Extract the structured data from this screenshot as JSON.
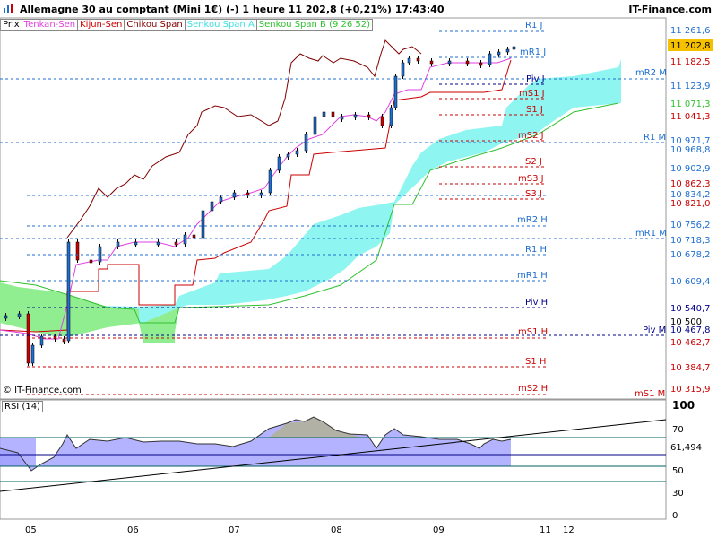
{
  "header": {
    "title": "Allemagne 30 au comptant (Mini 1€) (-)   1 heure   11 202,8 (+0,21%)   17:43:40",
    "brand": "IT-Finance.com"
  },
  "legend": [
    {
      "label": "Prix",
      "color": "#000000"
    },
    {
      "label": "Tenkan-Sen",
      "color": "#e040e0"
    },
    {
      "label": "Kijun-Sen",
      "color": "#cc0000"
    },
    {
      "label": "Chikou Span",
      "color": "#800000"
    },
    {
      "label": "Senkou Span A",
      "color": "#40e0e0"
    },
    {
      "label": "Senkou Span B (9 26 52)",
      "color": "#30c030"
    }
  ],
  "copyright": "© IT-Finance.com",
  "rsi": {
    "label": "RSI (14)",
    "value": "61,494",
    "ticks": [
      "100",
      "70",
      "50",
      "30",
      "0"
    ]
  },
  "x_labels": [
    "05",
    "06",
    "07",
    "08",
    "09",
    "11",
    "12"
  ],
  "price_ticks": [
    "11 261,6",
    "11 182,5",
    "11 123,9",
    "11 071,3",
    "11 041,3",
    "10 971,7",
    "10 968,8",
    "10 902,9",
    "10 862,3",
    "10 834,2",
    "10 821,0",
    "10 756,2",
    "10 718,3",
    "10 678,2",
    "10 609,4",
    "10 540,7",
    "10 500",
    "10 467,8",
    "10 462,7",
    "10 384,7",
    "10 315,9"
  ],
  "current_price": "11 202,8",
  "pivots": [
    {
      "label": "R1 J",
      "color": "#1e6fd0"
    },
    {
      "label": "mR1 J",
      "color": "#1e6fd0"
    },
    {
      "label": "Piv J",
      "color": "#00008b"
    },
    {
      "label": "mS1 J",
      "color": "#cc0000"
    },
    {
      "label": "S1 J",
      "color": "#cc0000"
    },
    {
      "label": "mS2 J",
      "color": "#cc0000"
    },
    {
      "label": "S2 J",
      "color": "#cc0000"
    },
    {
      "label": "mS3 J",
      "color": "#cc0000"
    },
    {
      "label": "S3 J",
      "color": "#cc0000"
    },
    {
      "label": "mR2 H",
      "color": "#1e6fd0"
    },
    {
      "label": "R1 H",
      "color": "#1e6fd0"
    },
    {
      "label": "mR1 H",
      "color": "#1e6fd0"
    },
    {
      "label": "Piv H",
      "color": "#00008b"
    },
    {
      "label": "mS1 H",
      "color": "#cc0000"
    },
    {
      "label": "S1 H",
      "color": "#cc0000"
    },
    {
      "label": "mS2 H",
      "color": "#cc0000"
    },
    {
      "label": "mR2 M",
      "color": "#1e6fd0"
    },
    {
      "label": "R1 M",
      "color": "#1e6fd0"
    },
    {
      "label": "mR1 M",
      "color": "#1e6fd0"
    },
    {
      "label": "Piv M",
      "color": "#00008b"
    },
    {
      "label": "mS1 M",
      "color": "#cc0000"
    }
  ]
}
